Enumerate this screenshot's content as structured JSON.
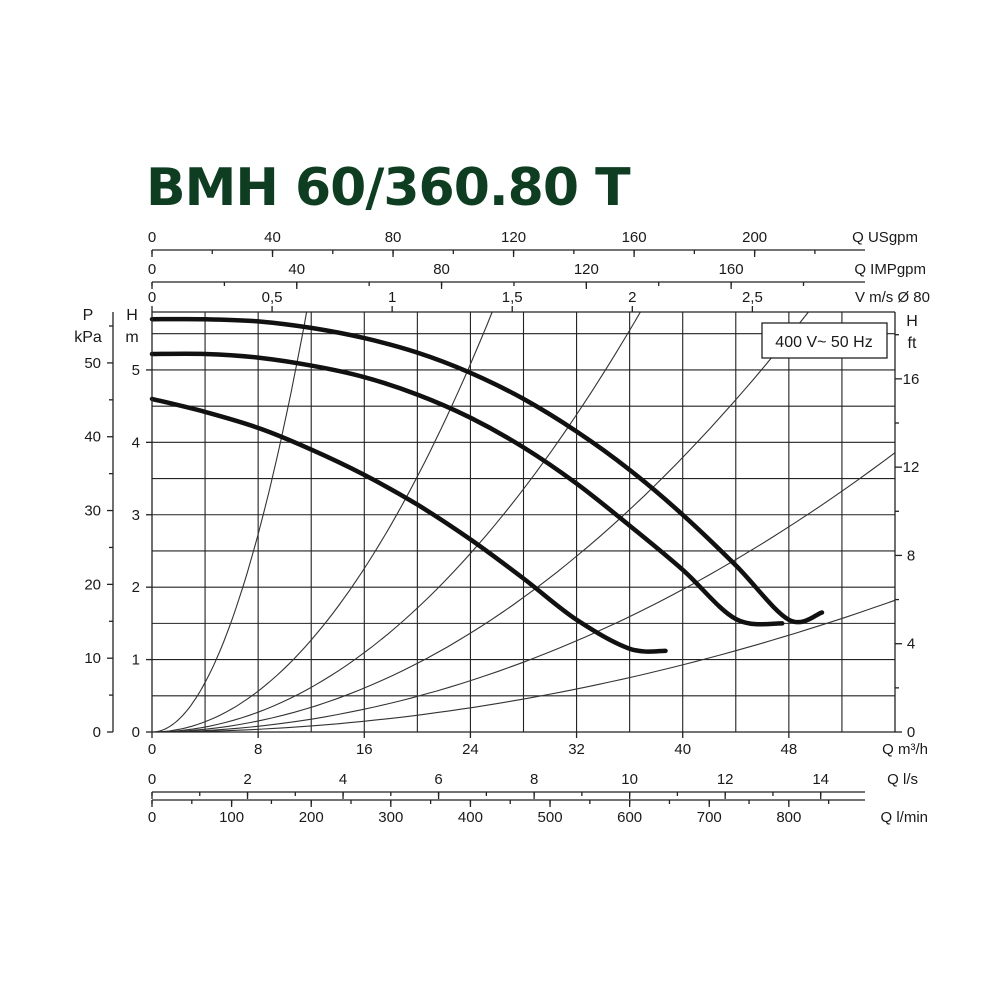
{
  "chart_data": {
    "type": "line",
    "title": "BMH 60/360.80 T",
    "annotation": "400 V~ 50 Hz",
    "grid": true,
    "xlim": [
      0,
      56
    ],
    "ylim": [
      0,
      5.8
    ],
    "x_axes": {
      "q_m3h": {
        "label": "Q m³/h",
        "ticks": [
          0,
          8,
          16,
          24,
          32,
          40,
          48
        ]
      },
      "q_ls": {
        "label": "Q l/s",
        "ticks": [
          0,
          2,
          4,
          6,
          8,
          10,
          12,
          14
        ]
      },
      "q_lmin": {
        "label": "Q l/min",
        "ticks": [
          0,
          100,
          200,
          300,
          400,
          500,
          600,
          700,
          800
        ]
      },
      "q_usgpm": {
        "label": "Q USgpm",
        "ticks": [
          0,
          40,
          80,
          120,
          160,
          200
        ]
      },
      "q_impgpm": {
        "label": "Q IMPgpm",
        "ticks": [
          0,
          40,
          80,
          120,
          160
        ]
      },
      "v_ms": {
        "label": "V m/s Ø 80",
        "ticks": [
          "0",
          "0,5",
          "1",
          "1,5",
          "2",
          "2,5"
        ],
        "values": [
          0,
          0.5,
          1,
          1.5,
          2,
          2.5
        ]
      }
    },
    "y_axes": {
      "h_m": {
        "label_top": "H",
        "label_bottom": "m",
        "ticks": [
          0,
          1,
          2,
          3,
          4,
          5
        ]
      },
      "p_kpa": {
        "label_top": "P",
        "label_bottom": "kPa",
        "ticks": [
          0,
          10,
          20,
          30,
          40,
          50
        ]
      },
      "h_ft": {
        "label_top": "H",
        "label_bottom": "ft",
        "ticks": [
          0,
          4,
          8,
          12,
          16
        ]
      }
    },
    "series": [
      {
        "x": [
          0,
          4,
          8,
          12,
          16,
          20,
          24,
          28,
          32,
          36,
          40,
          44,
          48,
          50.5
        ],
        "y": [
          5.7,
          5.7,
          5.67,
          5.58,
          5.44,
          5.24,
          4.96,
          4.6,
          4.15,
          3.62,
          3.0,
          2.3,
          1.55,
          1.65
        ]
      },
      {
        "x": [
          0,
          4,
          8,
          12,
          16,
          20,
          24,
          28,
          32,
          36,
          40,
          44,
          47.5
        ],
        "y": [
          5.22,
          5.22,
          5.17,
          5.06,
          4.9,
          4.66,
          4.34,
          3.93,
          3.43,
          2.85,
          2.24,
          1.56,
          1.5
        ]
      },
      {
        "x": [
          0,
          4,
          8,
          12,
          16,
          20,
          24,
          28,
          32,
          36,
          38.7
        ],
        "y": [
          4.6,
          4.42,
          4.2,
          3.9,
          3.55,
          3.14,
          2.66,
          2.12,
          1.55,
          1.15,
          1.12
        ]
      }
    ],
    "system_curves_k": [
      0.0427,
      0.00882,
      0.00428,
      0.00237,
      0.00123,
      0.00058
    ]
  }
}
